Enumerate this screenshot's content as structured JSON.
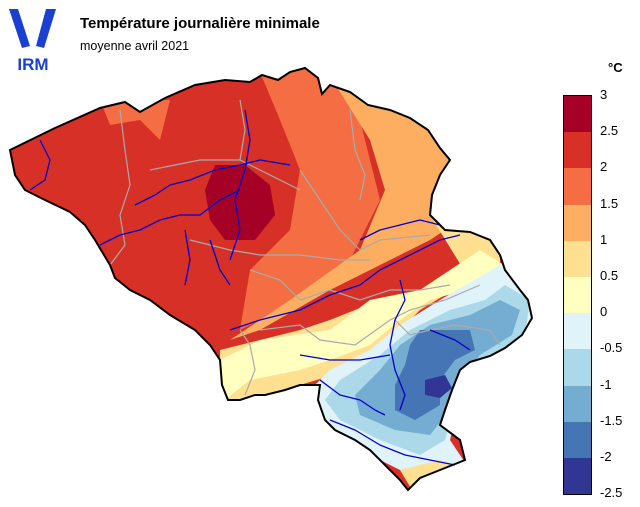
{
  "header": {
    "title": "Température journalière minimale",
    "subtitle": "moyenne avril 2021",
    "logo_text": "IRM"
  },
  "legend": {
    "unit": "°C",
    "labels": [
      "3",
      "2.5",
      "2",
      "1.5",
      "1",
      "0.5",
      "0",
      "-0.5",
      "-1",
      "-1.5",
      "-2",
      "-2.5"
    ],
    "colors": [
      "#a50026",
      "#d73027",
      "#f46d43",
      "#fdae61",
      "#fee090",
      "#ffffbf",
      "#e0f3f8",
      "#abd9e9",
      "#74add1",
      "#4575b4",
      "#313695"
    ]
  },
  "map": {
    "region": "Belgium",
    "colors": {
      "very_warm": "#a50026",
      "warm": "#d73027",
      "mild": "#f46d43",
      "orange": "#fdae61",
      "light_orange": "#fee090",
      "pale": "#ffffbf",
      "cold_pale": "#e0f3f8",
      "cold": "#abd9e9",
      "colder": "#74add1",
      "coldest": "#4575b4",
      "deep": "#313695",
      "rivers": "#0000cc",
      "borders": "#aaaaaa"
    }
  }
}
